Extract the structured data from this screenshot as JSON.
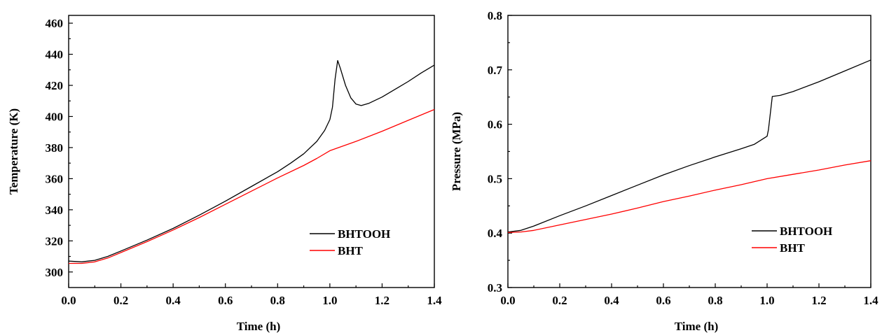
{
  "chart_data": [
    {
      "type": "line",
      "xlabel": "Time (h)",
      "ylabel": "Temperature (K)",
      "xlim": [
        0.0,
        1.4
      ],
      "ylim": [
        290,
        465
      ],
      "x_ticks": [
        "0.0",
        "0.2",
        "0.4",
        "0.6",
        "0.8",
        "1.0",
        "1.2",
        "1.4"
      ],
      "y_ticks": [
        "300",
        "320",
        "340",
        "360",
        "380",
        "400",
        "420",
        "440",
        "460"
      ],
      "grid": false,
      "legend_position": "bottom-right",
      "series": [
        {
          "name": "BHTOOH",
          "color": "#000000",
          "x": [
            0.0,
            0.05,
            0.1,
            0.15,
            0.2,
            0.3,
            0.4,
            0.5,
            0.6,
            0.7,
            0.8,
            0.85,
            0.9,
            0.95,
            0.98,
            1.0,
            1.01,
            1.02,
            1.03,
            1.04,
            1.06,
            1.08,
            1.1,
            1.12,
            1.15,
            1.2,
            1.25,
            1.3,
            1.35,
            1.4
          ],
          "y": [
            307,
            306.5,
            307.5,
            310,
            313.5,
            320.5,
            328,
            336.5,
            345.5,
            355,
            364.5,
            370,
            376,
            384,
            391,
            398,
            406,
            424,
            436,
            431,
            420,
            412,
            408,
            407,
            408.5,
            412.5,
            417.5,
            422.5,
            428,
            433
          ]
        },
        {
          "name": "BHT",
          "color": "#ff0000",
          "x": [
            0.0,
            0.05,
            0.1,
            0.15,
            0.2,
            0.3,
            0.4,
            0.5,
            0.6,
            0.7,
            0.8,
            0.9,
            0.95,
            1.0,
            1.1,
            1.2,
            1.3,
            1.4
          ],
          "y": [
            305.5,
            305.5,
            306.5,
            309,
            312.5,
            319.5,
            327,
            335,
            343.5,
            352,
            360.5,
            368.5,
            373,
            378,
            384,
            390.5,
            397.5,
            404.5
          ]
        }
      ]
    },
    {
      "type": "line",
      "xlabel": "Time (h)",
      "ylabel": "Pressure (MPa)",
      "xlim": [
        0.0,
        1.4
      ],
      "ylim": [
        0.3,
        0.8
      ],
      "x_ticks": [
        "0.0",
        "0.2",
        "0.4",
        "0.6",
        "0.8",
        "1.0",
        "1.2",
        "1.4"
      ],
      "y_ticks": [
        "0.3",
        "0.4",
        "0.5",
        "0.6",
        "0.7",
        "0.8"
      ],
      "grid": false,
      "legend_position": "bottom-right",
      "series": [
        {
          "name": "BHTOOH",
          "color": "#000000",
          "x": [
            0.0,
            0.05,
            0.1,
            0.2,
            0.3,
            0.4,
            0.5,
            0.6,
            0.7,
            0.8,
            0.9,
            0.95,
            1.0,
            1.005,
            1.02,
            1.05,
            1.1,
            1.2,
            1.3,
            1.4
          ],
          "y": [
            0.402,
            0.405,
            0.413,
            0.432,
            0.45,
            0.469,
            0.488,
            0.507,
            0.524,
            0.54,
            0.555,
            0.563,
            0.578,
            0.59,
            0.651,
            0.653,
            0.66,
            0.678,
            0.698,
            0.718
          ]
        },
        {
          "name": "BHT",
          "color": "#ff0000",
          "x": [
            0.0,
            0.05,
            0.1,
            0.2,
            0.3,
            0.4,
            0.5,
            0.6,
            0.7,
            0.8,
            0.9,
            1.0,
            1.1,
            1.2,
            1.3,
            1.4
          ],
          "y": [
            0.401,
            0.402,
            0.405,
            0.415,
            0.425,
            0.435,
            0.446,
            0.458,
            0.468,
            0.479,
            0.489,
            0.5,
            0.508,
            0.516,
            0.525,
            0.533
          ]
        }
      ]
    }
  ]
}
